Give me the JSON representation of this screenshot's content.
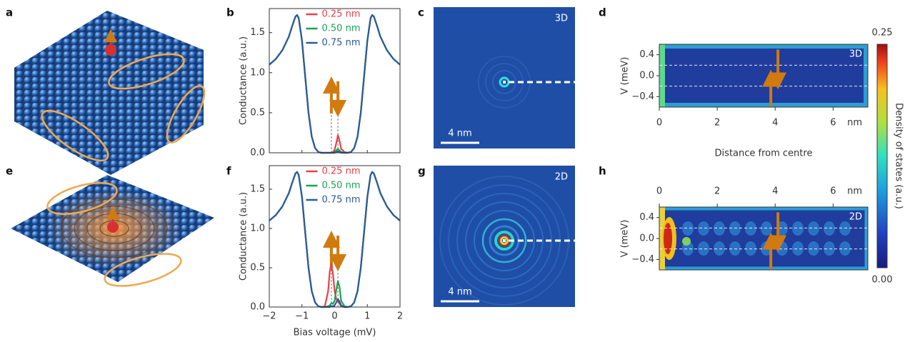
{
  "panel_labels": [
    "a",
    "b",
    "c",
    "d",
    "e",
    "f",
    "g",
    "h"
  ],
  "images": [
    {
      "label": "3D",
      "scale_bar": "4 nm"
    },
    {
      "label": "2D",
      "scale_bar": "4 nm"
    }
  ],
  "chart_data": [
    {
      "type": "line",
      "ylabel": "Conductance (a.u.)",
      "legend": "upper center",
      "x": [
        -2,
        -1.8,
        -1.6,
        -1.4,
        -1.3,
        -1.2,
        -1.15,
        -1.1,
        -1,
        -0.9,
        -0.8,
        -0.7,
        -0.6,
        -0.5,
        -0.4,
        -0.3,
        -0.2,
        -0.15,
        -0.1,
        -0.05,
        0,
        0.05,
        0.1,
        0.15,
        0.2,
        0.3,
        0.4,
        0.5,
        0.6,
        0.7,
        0.8,
        0.9,
        1,
        1.1,
        1.15,
        1.2,
        1.3,
        1.4,
        1.6,
        1.8,
        2
      ],
      "xlim": [
        -2,
        2
      ],
      "xticks": [
        -2,
        -1,
        0,
        1,
        2
      ],
      "ylim": [
        0,
        1.8
      ],
      "yticks": [
        {
          "value": 0,
          "label": "0.0"
        },
        0.5,
        {
          "value": 1,
          "label": "1.0"
        },
        1.5
      ],
      "series": [
        {
          "name": "0.25 nm",
          "color": "#e8404a",
          "values": [
            1.1,
            1.17,
            1.28,
            1.45,
            1.58,
            1.7,
            1.72,
            1.68,
            1.4,
            0.95,
            0.5,
            0.2,
            0.06,
            0.01,
            0,
            0,
            0,
            0,
            0,
            0.01,
            0.04,
            0.12,
            0.22,
            0.15,
            0.05,
            0.01,
            0,
            0.01,
            0.06,
            0.2,
            0.5,
            0.95,
            1.4,
            1.68,
            1.72,
            1.7,
            1.58,
            1.45,
            1.28,
            1.17,
            1.1
          ]
        },
        {
          "name": "0.50 nm",
          "color": "#1aa352",
          "values": [
            1.1,
            1.17,
            1.28,
            1.45,
            1.58,
            1.7,
            1.72,
            1.68,
            1.4,
            0.95,
            0.5,
            0.2,
            0.06,
            0.01,
            0,
            0,
            0,
            0,
            0,
            0,
            0.01,
            0.03,
            0.05,
            0.03,
            0.01,
            0,
            0,
            0.01,
            0.06,
            0.2,
            0.5,
            0.95,
            1.4,
            1.68,
            1.72,
            1.7,
            1.58,
            1.45,
            1.28,
            1.17,
            1.1
          ]
        },
        {
          "name": "0.75 nm",
          "color": "#2a5b9b",
          "values": [
            1.1,
            1.17,
            1.28,
            1.45,
            1.58,
            1.7,
            1.72,
            1.68,
            1.4,
            0.95,
            0.5,
            0.2,
            0.06,
            0.01,
            0,
            0,
            0,
            0,
            0,
            0,
            0,
            0.01,
            0.02,
            0.01,
            0,
            0,
            0,
            0.01,
            0.06,
            0.2,
            0.5,
            0.95,
            1.4,
            1.68,
            1.72,
            1.7,
            1.58,
            1.45,
            1.28,
            1.17,
            1.1
          ]
        }
      ]
    },
    {
      "type": "line",
      "ylabel": "Conductance (a.u.)",
      "xlabel": "Bias voltage (mV)",
      "legend": "upper center",
      "x": [
        -2,
        -1.8,
        -1.6,
        -1.4,
        -1.3,
        -1.2,
        -1.15,
        -1.1,
        -1,
        -0.9,
        -0.8,
        -0.7,
        -0.6,
        -0.5,
        -0.4,
        -0.3,
        -0.2,
        -0.15,
        -0.1,
        -0.05,
        0,
        0.05,
        0.1,
        0.15,
        0.2,
        0.3,
        0.4,
        0.5,
        0.6,
        0.7,
        0.8,
        0.9,
        1,
        1.1,
        1.15,
        1.2,
        1.3,
        1.4,
        1.6,
        1.8,
        2
      ],
      "xlim": [
        -2,
        2
      ],
      "xticks": [
        {
          "value": -2,
          "label": "−2"
        },
        {
          "value": -1,
          "label": "−1"
        },
        0,
        1,
        2
      ],
      "ylim": [
        0,
        1.8
      ],
      "yticks": [
        {
          "value": 0,
          "label": "0.0"
        },
        0.5,
        {
          "value": 1,
          "label": "1.0"
        },
        1.5
      ],
      "series": [
        {
          "name": "0.25 nm",
          "color": "#e8404a",
          "values": [
            1.1,
            1.17,
            1.28,
            1.45,
            1.58,
            1.7,
            1.72,
            1.68,
            1.4,
            0.95,
            0.5,
            0.2,
            0.06,
            0.01,
            0,
            0.01,
            0.2,
            0.45,
            0.55,
            0.42,
            0.2,
            0.1,
            0.08,
            0.04,
            0.01,
            0,
            0,
            0.01,
            0.06,
            0.2,
            0.5,
            0.95,
            1.4,
            1.68,
            1.72,
            1.7,
            1.58,
            1.45,
            1.28,
            1.17,
            1.1
          ]
        },
        {
          "name": "0.50 nm",
          "color": "#1aa352",
          "values": [
            1.1,
            1.17,
            1.28,
            1.45,
            1.58,
            1.7,
            1.72,
            1.68,
            1.4,
            0.95,
            0.5,
            0.2,
            0.06,
            0.01,
            0,
            0,
            0.01,
            0.02,
            0.05,
            0.04,
            0.08,
            0.22,
            0.33,
            0.25,
            0.08,
            0.01,
            0,
            0.01,
            0.06,
            0.2,
            0.5,
            0.95,
            1.4,
            1.68,
            1.72,
            1.7,
            1.58,
            1.45,
            1.28,
            1.17,
            1.1
          ]
        },
        {
          "name": "0.75 nm",
          "color": "#2a5b9b",
          "values": [
            1.1,
            1.17,
            1.28,
            1.45,
            1.58,
            1.7,
            1.72,
            1.68,
            1.4,
            0.95,
            0.5,
            0.2,
            0.06,
            0.01,
            0,
            0,
            0,
            0,
            0.01,
            0.01,
            0.02,
            0.06,
            0.1,
            0.07,
            0.02,
            0,
            0,
            0.01,
            0.06,
            0.2,
            0.5,
            0.95,
            1.4,
            1.68,
            1.72,
            1.7,
            1.58,
            1.45,
            1.28,
            1.17,
            1.1
          ]
        }
      ]
    },
    {
      "type": "heatmap",
      "annotation": "3D",
      "ylabel": "V (meV)",
      "xlabel": "Distance from centre",
      "x_unit": "nm",
      "xlim": [
        0,
        7.2
      ],
      "xticks": [
        0,
        2,
        4,
        6
      ],
      "ylim": [
        -0.6,
        0.6
      ],
      "yticks": [
        0.4,
        {
          "value": 0,
          "label": "0.0"
        },
        {
          "value": -0.4,
          "label": "−0.4"
        }
      ],
      "colorbar": {
        "label": "Density of states (a.u.)",
        "clim": [
          0,
          0.25
        ],
        "ticks": [
          0.25,
          {
            "value": 0,
            "label": "0.00"
          }
        ]
      }
    },
    {
      "type": "heatmap",
      "annotation": "2D",
      "ylabel": "V (meV)",
      "x_unit": "nm",
      "xlim": [
        0,
        7.2
      ],
      "xticks": [
        0,
        2,
        4,
        6
      ],
      "ylim": [
        -0.6,
        0.6
      ],
      "yticks": [
        0.4,
        {
          "value": 0,
          "label": "0.0"
        },
        {
          "value": -0.4,
          "label": "−0.4"
        }
      ]
    }
  ]
}
